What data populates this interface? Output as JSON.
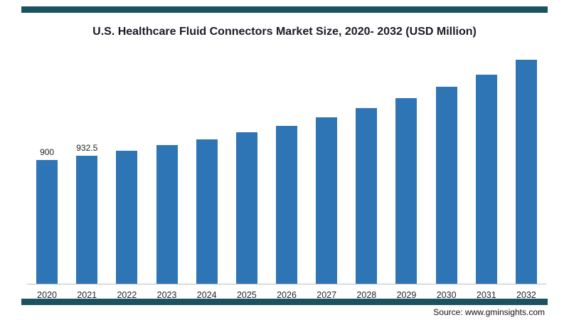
{
  "page": {
    "title": "U.S. Healthcare Fluid Connectors Market Size, 2020- 2032 (USD Million)",
    "source_text": "Source: www.gminsights.com",
    "accent_color": "#1a5260",
    "bar_color": "#2e75b6"
  },
  "chart_data": {
    "type": "bar",
    "title": "U.S. Healthcare Fluid Connectors Market Size, 2020- 2032 (USD Million)",
    "categories": [
      "2020",
      "2021",
      "2022",
      "2023",
      "2024",
      "2025",
      "2026",
      "2027",
      "2028",
      "2029",
      "2030",
      "2031",
      "2032"
    ],
    "values": [
      900,
      932.5,
      970,
      1010,
      1050,
      1100,
      1150,
      1210,
      1280,
      1350,
      1430,
      1520,
      1630
    ],
    "data_labels": [
      "900",
      "932.5",
      null,
      null,
      null,
      null,
      null,
      null,
      null,
      null,
      null,
      null,
      null
    ],
    "xlabel": "",
    "ylabel": "USD Million",
    "ylim": [
      0,
      1700
    ],
    "grid": false,
    "legend": false,
    "bar_color": "#2e75b6",
    "source": "Source: www.gminsights.com"
  }
}
